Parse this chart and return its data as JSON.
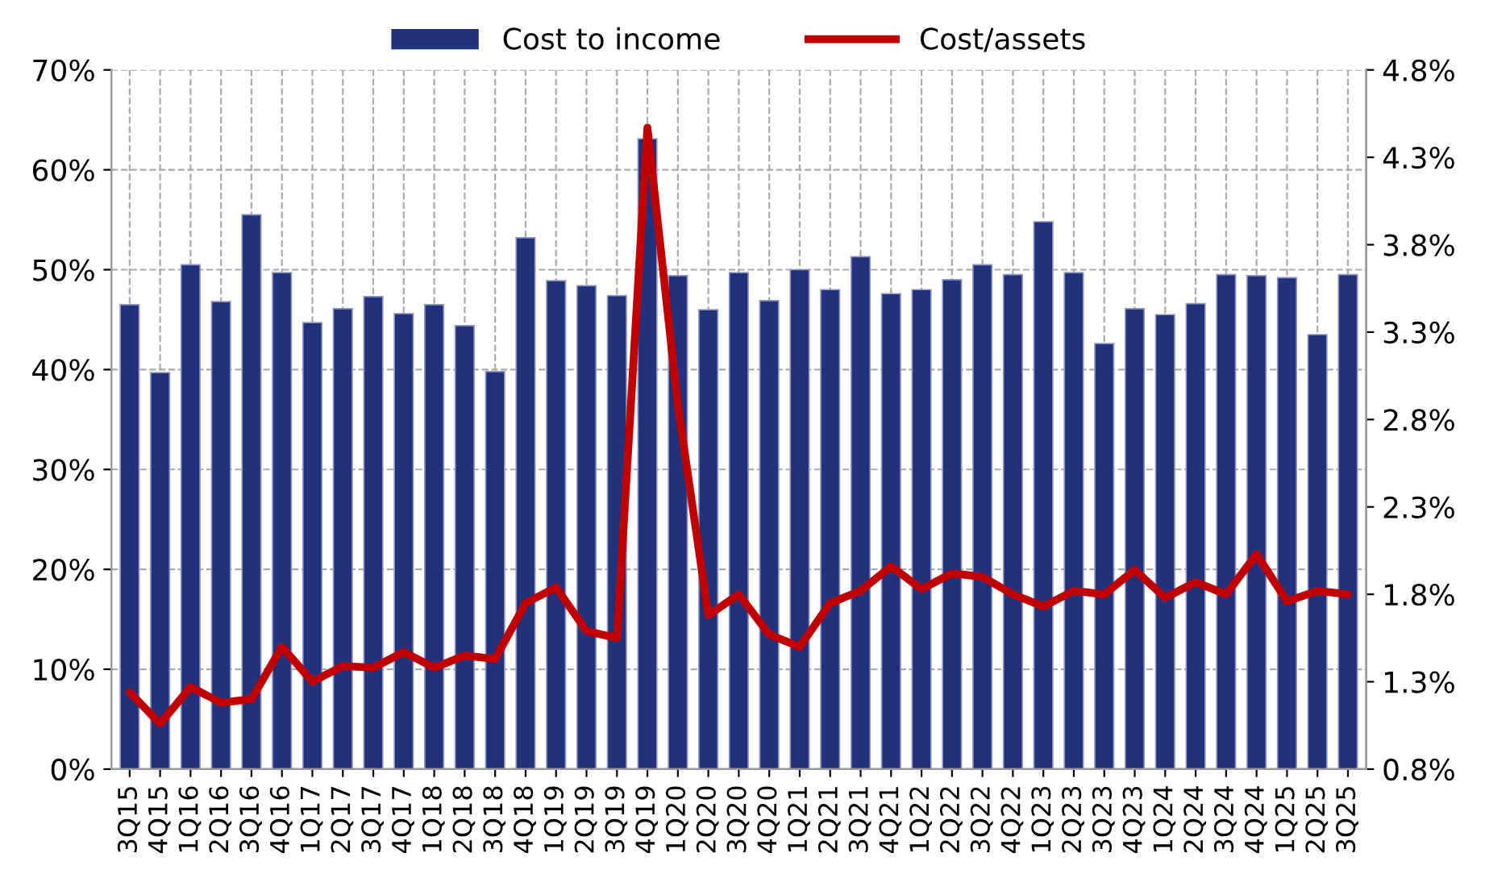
{
  "chart_data": {
    "type": "bar",
    "categories": [
      "3Q15",
      "4Q15",
      "1Q16",
      "2Q16",
      "3Q16",
      "4Q16",
      "1Q17",
      "2Q17",
      "3Q17",
      "4Q17",
      "1Q18",
      "2Q18",
      "3Q18",
      "4Q18",
      "1Q19",
      "2Q19",
      "3Q19",
      "4Q19",
      "1Q20",
      "2Q20",
      "3Q20",
      "4Q20",
      "1Q21",
      "2Q21",
      "3Q21",
      "4Q21",
      "1Q22",
      "2Q22",
      "3Q22",
      "4Q22",
      "1Q23",
      "2Q23",
      "3Q23",
      "4Q23",
      "1Q24",
      "2Q24",
      "3Q24",
      "4Q24",
      "1Q25",
      "2Q25",
      "3Q25"
    ],
    "series": [
      {
        "name": "Cost to income",
        "color": "#21317c",
        "values": [
          46.5,
          39.7,
          50.5,
          46.8,
          55.5,
          49.7,
          44.7,
          46.1,
          47.3,
          45.6,
          46.5,
          44.4,
          39.8,
          53.2,
          48.9,
          48.4,
          47.4,
          63.1,
          49.4,
          46.0,
          49.7,
          46.9,
          50.0,
          48.0,
          51.3,
          47.6,
          48.0,
          49.0,
          50.5,
          49.5,
          54.8,
          49.7,
          42.6,
          46.1,
          45.5,
          46.6,
          49.5,
          49.4,
          49.2,
          43.5,
          49.5
        ]
      },
      {
        "name": "Cost/assets",
        "type": "line",
        "axis": "y2",
        "color": "#c00000",
        "values": [
          1.24,
          1.06,
          1.27,
          1.18,
          1.2,
          1.5,
          1.3,
          1.39,
          1.38,
          1.47,
          1.38,
          1.45,
          1.43,
          1.75,
          1.84,
          1.59,
          1.55,
          4.47,
          2.88,
          1.68,
          1.8,
          1.57,
          1.5,
          1.75,
          1.82,
          1.96,
          1.83,
          1.92,
          1.9,
          1.8,
          1.73,
          1.82,
          1.8,
          1.94,
          1.78,
          1.87,
          1.8,
          2.03,
          1.76,
          1.82,
          1.8
        ]
      }
    ],
    "ylim": [
      0,
      70
    ],
    "yticks": [
      {
        "value": 0,
        "label": "0%"
      },
      {
        "value": 10,
        "label": "10%"
      },
      {
        "value": 20,
        "label": "20%"
      },
      {
        "value": 30,
        "label": "30%"
      },
      {
        "value": 40,
        "label": "40%"
      },
      {
        "value": 50,
        "label": "50%"
      },
      {
        "value": 60,
        "label": "60%"
      },
      {
        "value": 70,
        "label": "70%"
      }
    ],
    "y2lim": [
      0.8,
      4.8
    ],
    "y2ticks": [
      {
        "value": 0.8,
        "label": "0.8%"
      },
      {
        "value": 1.3,
        "label": "1.3%"
      },
      {
        "value": 1.8,
        "label": "1.8%"
      },
      {
        "value": 2.3,
        "label": "2.3%"
      },
      {
        "value": 2.8,
        "label": "2.8%"
      },
      {
        "value": 3.3,
        "label": "3.3%"
      },
      {
        "value": 3.8,
        "label": "3.8%"
      },
      {
        "value": 4.3,
        "label": "4.3%"
      },
      {
        "value": 4.8,
        "label": "4.8%"
      }
    ],
    "grid": true,
    "legend": "top",
    "line_style": "solid"
  }
}
